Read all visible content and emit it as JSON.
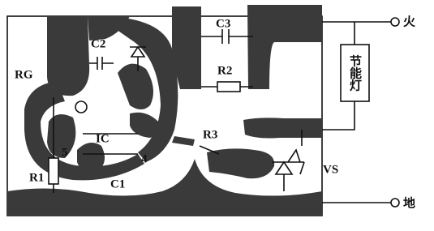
{
  "terminals": {
    "live": "火",
    "ground": "地"
  },
  "lamp": "节能灯",
  "labels": [
    "C3",
    "C2",
    "R2",
    "RG",
    "IC",
    "5",
    "4",
    "R3",
    "VS",
    "R1",
    "C1"
  ]
}
